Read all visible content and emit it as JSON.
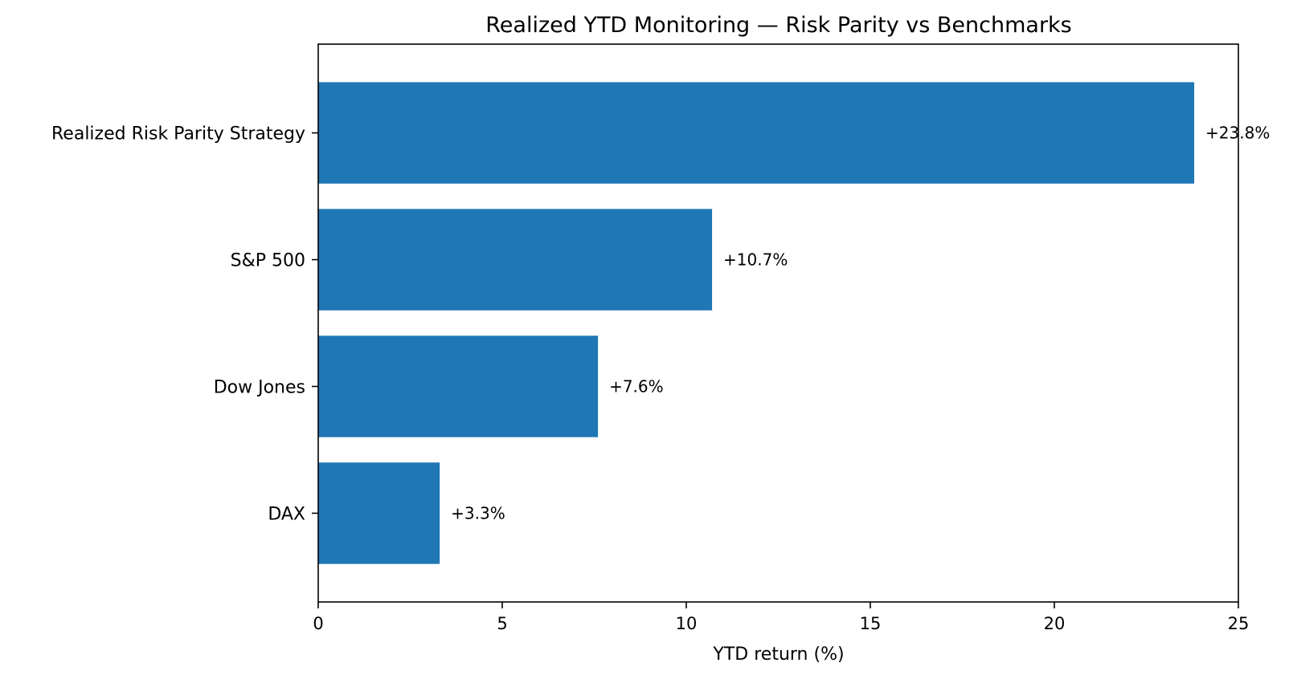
{
  "chart_data": {
    "type": "bar",
    "orientation": "horizontal",
    "title": "Realized YTD Monitoring — Risk Parity vs Benchmarks",
    "xlabel": "YTD return (%)",
    "ylabel": "",
    "xlim": [
      0,
      25
    ],
    "xticks": [
      0,
      5,
      10,
      15,
      20,
      25
    ],
    "categories": [
      "Realized Risk Parity Strategy",
      "S&P 500",
      "Dow Jones",
      "DAX"
    ],
    "values": [
      23.8,
      10.7,
      7.6,
      3.3
    ],
    "data_labels": [
      "+23.8%",
      "+10.7%",
      "+7.6%",
      "+3.3%"
    ],
    "grid": false,
    "legend": "none",
    "bar_color": "#1f77b4"
  }
}
